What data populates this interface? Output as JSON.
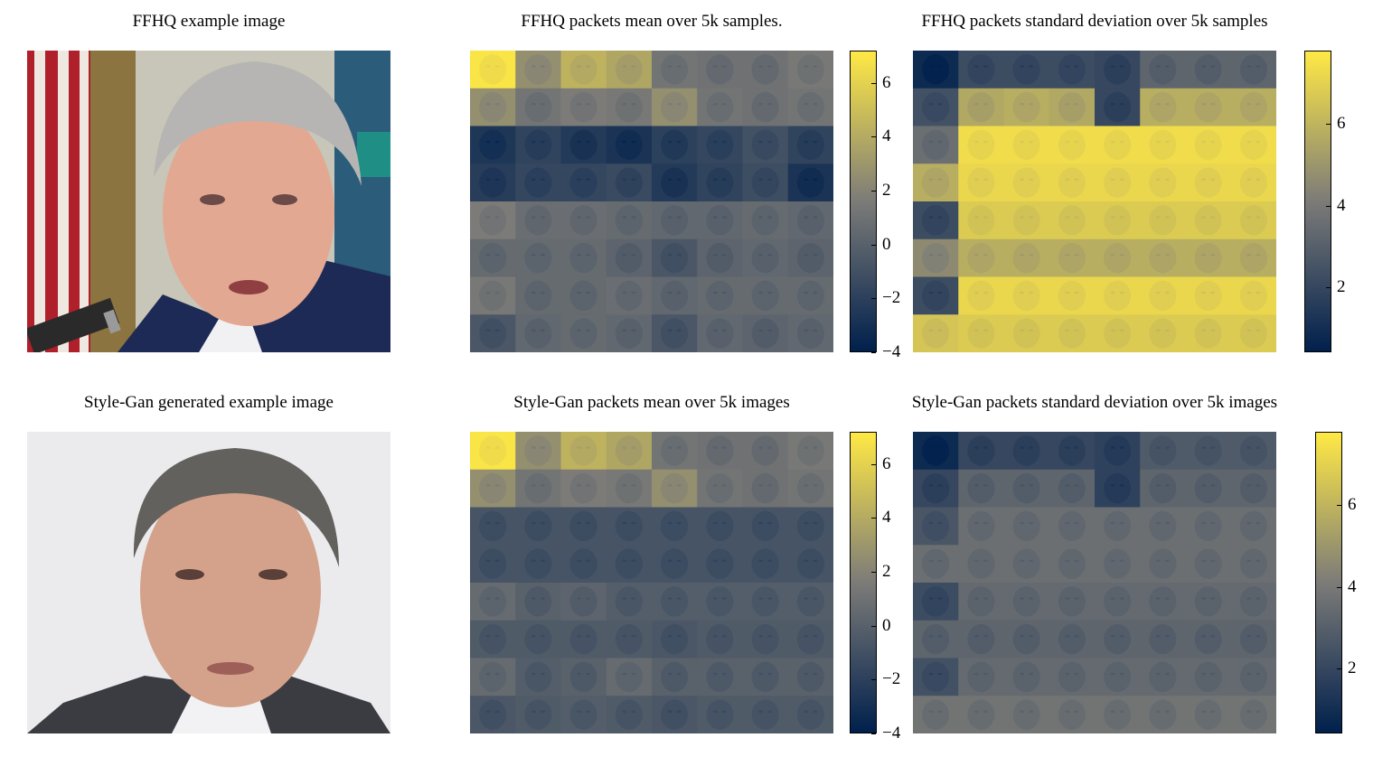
{
  "panels": {
    "ffhq_photo": {
      "title": "FFHQ example image"
    },
    "ffhq_mean": {
      "title": "FFHQ packets mean over 5k samples."
    },
    "ffhq_std": {
      "title": "FFHQ packets standard deviation over 5k samples"
    },
    "gan_photo": {
      "title": "Style-Gan generated example image"
    },
    "gan_mean": {
      "title": "Style-Gan packets mean over 5k images"
    },
    "gan_std": {
      "title": "Style-Gan packets standard deviation over 5k images"
    }
  },
  "colormap": {
    "low": "#00204c",
    "mid": "#7c7b78",
    "high": "#ffe945"
  },
  "chart_data": [
    {
      "type": "heatmap",
      "id": "ffhq_mean",
      "title": "FFHQ packets mean over 5k samples.",
      "rows": 8,
      "cols": 8,
      "values": [
        [
          7.0,
          2.6,
          4.4,
          3.8,
          1.2,
          1.0,
          1.0,
          1.4
        ],
        [
          2.6,
          1.2,
          1.6,
          1.4,
          2.6,
          1.2,
          1.0,
          1.2
        ],
        [
          -2.6,
          -1.8,
          -2.4,
          -2.8,
          -2.0,
          -1.6,
          -1.0,
          -1.8
        ],
        [
          -2.2,
          -1.6,
          -1.6,
          -1.4,
          -2.4,
          -1.8,
          -1.2,
          -2.8
        ],
        [
          1.6,
          0.8,
          0.8,
          0.6,
          0.4,
          0.4,
          0.6,
          0.4
        ],
        [
          0.6,
          0.6,
          0.6,
          0.2,
          -0.6,
          0.2,
          0.4,
          0.2
        ],
        [
          1.4,
          0.6,
          0.6,
          0.8,
          0.4,
          0.6,
          0.6,
          0.6
        ],
        [
          -0.6,
          0.4,
          0.6,
          0.4,
          -0.6,
          0.4,
          0.2,
          0.4
        ]
      ],
      "colorbar": {
        "min": -4,
        "max": 7.2,
        "ticks": [
          6,
          4,
          2,
          0,
          -2,
          -4
        ],
        "tick_labels": [
          "6",
          "4",
          "2",
          "0",
          "−2",
          "−4"
        ]
      }
    },
    {
      "type": "heatmap",
      "id": "ffhq_std",
      "title": "FFHQ packets standard deviation over 5k samples",
      "rows": 8,
      "cols": 8,
      "values": [
        [
          0.8,
          2.2,
          2.2,
          2.2,
          2.0,
          3.2,
          3.2,
          3.2
        ],
        [
          2.4,
          5.6,
          5.8,
          5.6,
          2.0,
          5.8,
          5.8,
          5.8
        ],
        [
          3.6,
          7.4,
          7.4,
          7.4,
          7.4,
          7.4,
          7.4,
          7.4
        ],
        [
          5.8,
          7.2,
          7.2,
          7.2,
          7.2,
          7.2,
          7.2,
          7.2
        ],
        [
          2.2,
          6.8,
          6.8,
          6.8,
          6.8,
          6.8,
          6.8,
          6.8
        ],
        [
          4.6,
          5.8,
          5.8,
          5.8,
          5.8,
          5.8,
          5.8,
          5.8
        ],
        [
          2.2,
          7.2,
          7.2,
          7.2,
          7.2,
          7.2,
          7.2,
          7.2
        ],
        [
          6.6,
          6.8,
          6.8,
          6.8,
          6.8,
          6.8,
          6.8,
          6.8
        ]
      ],
      "colorbar": {
        "min": 0.4,
        "max": 7.8,
        "ticks": [
          6,
          4,
          2
        ],
        "tick_labels": [
          "6",
          "4",
          "2"
        ]
      }
    },
    {
      "type": "heatmap",
      "id": "gan_mean",
      "title": "Style-Gan packets mean over 5k images",
      "rows": 8,
      "cols": 8,
      "values": [
        [
          7.0,
          2.6,
          4.4,
          3.8,
          1.2,
          1.0,
          1.0,
          1.4
        ],
        [
          2.6,
          1.2,
          1.6,
          1.4,
          2.6,
          1.2,
          1.0,
          1.2
        ],
        [
          -0.8,
          -0.8,
          -0.8,
          -0.8,
          -0.8,
          -0.8,
          -0.8,
          -0.8
        ],
        [
          -0.8,
          -0.8,
          -0.8,
          -0.8,
          -0.8,
          -0.8,
          -0.8,
          -0.8
        ],
        [
          0.6,
          0.0,
          0.2,
          -0.2,
          -0.2,
          -0.2,
          -0.2,
          -0.2
        ],
        [
          -0.4,
          -0.4,
          -0.4,
          -0.4,
          -0.6,
          -0.4,
          -0.4,
          -0.4
        ],
        [
          0.6,
          -0.2,
          0.0,
          0.6,
          0.0,
          0.0,
          0.0,
          0.0
        ],
        [
          -0.6,
          -0.4,
          -0.2,
          -0.4,
          -0.6,
          -0.4,
          -0.4,
          -0.4
        ]
      ],
      "colorbar": {
        "min": -4,
        "max": 7.2,
        "ticks": [
          6,
          4,
          2,
          0,
          -2,
          -4
        ],
        "tick_labels": [
          "6",
          "4",
          "2",
          "0",
          "−2",
          "−4"
        ]
      }
    },
    {
      "type": "heatmap",
      "id": "gan_std",
      "title": "Style-Gan packets standard deviation over 5k images",
      "rows": 8,
      "cols": 8,
      "values": [
        [
          0.8,
          2.0,
          2.0,
          2.0,
          1.8,
          2.8,
          2.8,
          2.8
        ],
        [
          2.0,
          3.2,
          3.2,
          3.2,
          1.8,
          3.2,
          3.2,
          3.2
        ],
        [
          2.6,
          3.6,
          3.6,
          3.6,
          3.6,
          3.6,
          3.6,
          3.6
        ],
        [
          3.6,
          3.6,
          3.6,
          3.6,
          3.6,
          3.6,
          3.6,
          3.6
        ],
        [
          2.2,
          3.4,
          3.4,
          3.4,
          3.4,
          3.4,
          3.4,
          3.4
        ],
        [
          3.2,
          3.2,
          3.2,
          3.2,
          3.2,
          3.2,
          3.2,
          3.2
        ],
        [
          2.4,
          3.4,
          3.4,
          3.4,
          3.4,
          3.4,
          3.4,
          3.4
        ],
        [
          3.8,
          3.8,
          3.8,
          3.8,
          3.8,
          3.8,
          3.8,
          3.8
        ]
      ],
      "colorbar": {
        "min": 0.4,
        "max": 7.8,
        "ticks": [
          6,
          4,
          2
        ],
        "tick_labels": [
          "6",
          "4",
          "2"
        ]
      }
    }
  ]
}
